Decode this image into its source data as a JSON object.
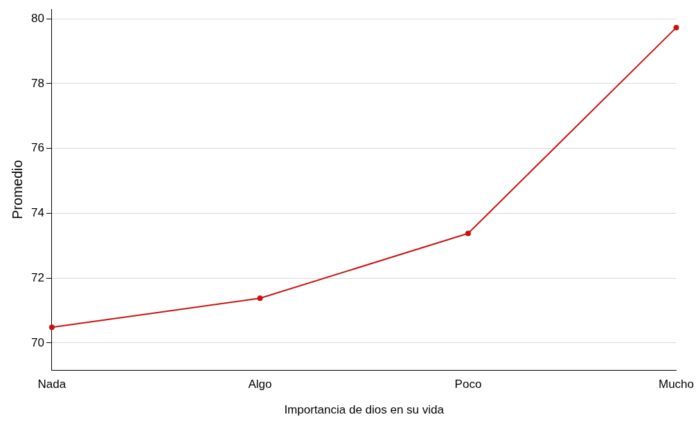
{
  "chart_data": {
    "type": "line",
    "xlabel": "Importancia de dios en su vida",
    "ylabel": "Promedio",
    "categories": [
      "Nada",
      "Algo",
      "Poco",
      "Mucho"
    ],
    "series": [
      {
        "color": "#cc1111",
        "values": [
          70.48,
          71.38,
          73.38,
          79.73
        ]
      }
    ],
    "ylim": [
      69.16,
      80.3
    ],
    "yticks": [
      70,
      72,
      74,
      76,
      78,
      80
    ],
    "grid": "y",
    "legend": false,
    "marker": "circle",
    "line_style": "solid"
  }
}
